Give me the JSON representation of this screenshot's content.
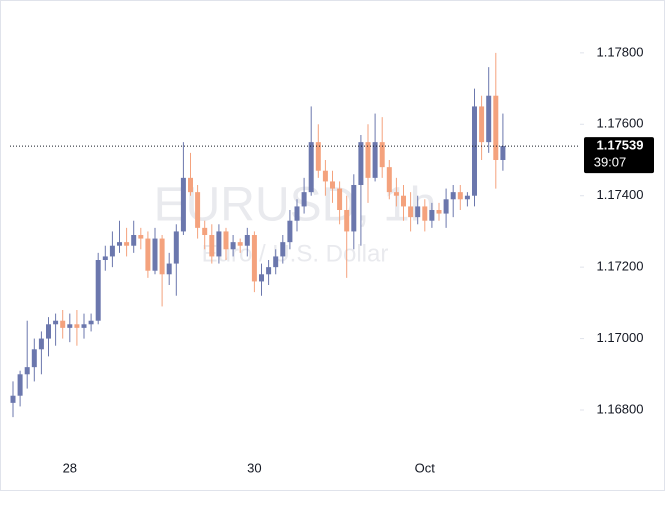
{
  "chart_data": {
    "type": "candlestick",
    "watermark": {
      "symbol": "EURUSD, 1h",
      "description": "Euro / U.S. Dollar"
    },
    "up_color": "#6b77ad",
    "down_color": "#f4a27d",
    "categories": [
      null,
      null,
      null,
      null,
      null,
      null,
      null,
      null,
      "28",
      null,
      null,
      null,
      null,
      null,
      null,
      null,
      null,
      null,
      null,
      null,
      null,
      null,
      null,
      null,
      null,
      null,
      null,
      null,
      null,
      null,
      null,
      null,
      null,
      null,
      "30",
      null,
      null,
      null,
      null,
      null,
      null,
      null,
      null,
      null,
      null,
      null,
      null,
      null,
      null,
      null,
      null,
      null,
      null,
      null,
      null,
      null,
      null,
      null,
      "Oct",
      null,
      null,
      null,
      null,
      null,
      null,
      null,
      null,
      null,
      null,
      null
    ],
    "ohlc": [
      [
        1.1682,
        1.1688,
        1.1678,
        1.1684
      ],
      [
        1.1684,
        1.1691,
        1.1681,
        1.169
      ],
      [
        1.169,
        1.1705,
        1.1686,
        1.1692
      ],
      [
        1.1692,
        1.17,
        1.1688,
        1.1697
      ],
      [
        1.1697,
        1.1702,
        1.169,
        1.17
      ],
      [
        1.17,
        1.1706,
        1.1695,
        1.1704
      ],
      [
        1.1704,
        1.1707,
        1.1698,
        1.1705
      ],
      [
        1.1705,
        1.1708,
        1.17,
        1.1703
      ],
      [
        1.1703,
        1.1707,
        1.1699,
        1.1704
      ],
      [
        1.1704,
        1.1708,
        1.1698,
        1.1703
      ],
      [
        1.1703,
        1.1707,
        1.17,
        1.1704
      ],
      [
        1.1704,
        1.1707,
        1.1702,
        1.1705
      ],
      [
        1.1705,
        1.1724,
        1.1704,
        1.1722
      ],
      [
        1.1722,
        1.1726,
        1.1719,
        1.1723
      ],
      [
        1.1723,
        1.173,
        1.172,
        1.1726
      ],
      [
        1.1726,
        1.1733,
        1.1724,
        1.1727
      ],
      [
        1.1727,
        1.1731,
        1.1723,
        1.1726
      ],
      [
        1.1726,
        1.1733,
        1.1724,
        1.1729
      ],
      [
        1.1729,
        1.1731,
        1.1725,
        1.1728
      ],
      [
        1.1728,
        1.173,
        1.1717,
        1.1719
      ],
      [
        1.1719,
        1.1731,
        1.1718,
        1.1728
      ],
      [
        1.1728,
        1.1729,
        1.1709,
        1.1718
      ],
      [
        1.1718,
        1.1724,
        1.1715,
        1.1721
      ],
      [
        1.1721,
        1.1732,
        1.1712,
        1.173
      ],
      [
        1.173,
        1.1755,
        1.1729,
        1.1745
      ],
      [
        1.1745,
        1.1752,
        1.174,
        1.1741
      ],
      [
        1.1741,
        1.1743,
        1.1728,
        1.1731
      ],
      [
        1.1731,
        1.1733,
        1.1725,
        1.1729
      ],
      [
        1.1729,
        1.1732,
        1.1721,
        1.1723
      ],
      [
        1.1723,
        1.1732,
        1.1721,
        1.173
      ],
      [
        1.173,
        1.1731,
        1.1722,
        1.1725
      ],
      [
        1.1725,
        1.1729,
        1.1723,
        1.1727
      ],
      [
        1.1727,
        1.1728,
        1.1724,
        1.1726
      ],
      [
        1.1726,
        1.1731,
        1.1723,
        1.1729
      ],
      [
        1.1729,
        1.173,
        1.1713,
        1.1716
      ],
      [
        1.1716,
        1.1721,
        1.1712,
        1.1718
      ],
      [
        1.1718,
        1.1722,
        1.1715,
        1.172
      ],
      [
        1.172,
        1.1725,
        1.1718,
        1.1723
      ],
      [
        1.1723,
        1.1729,
        1.1721,
        1.1727
      ],
      [
        1.1727,
        1.1736,
        1.1725,
        1.1733
      ],
      [
        1.1733,
        1.1739,
        1.173,
        1.1737
      ],
      [
        1.1737,
        1.1745,
        1.1735,
        1.1741
      ],
      [
        1.1741,
        1.1765,
        1.174,
        1.1755
      ],
      [
        1.1755,
        1.176,
        1.1745,
        1.1747
      ],
      [
        1.1747,
        1.175,
        1.174,
        1.1744
      ],
      [
        1.1744,
        1.1747,
        1.1738,
        1.1742
      ],
      [
        1.1742,
        1.1744,
        1.1732,
        1.1736
      ],
      [
        1.1736,
        1.174,
        1.1717,
        1.173
      ],
      [
        1.173,
        1.1746,
        1.1725,
        1.1743
      ],
      [
        1.1743,
        1.1757,
        1.1726,
        1.1755
      ],
      [
        1.1755,
        1.176,
        1.1738,
        1.1745
      ],
      [
        1.1745,
        1.1763,
        1.1744,
        1.1755
      ],
      [
        1.1755,
        1.1762,
        1.1745,
        1.1748
      ],
      [
        1.1748,
        1.175,
        1.1739,
        1.1741
      ],
      [
        1.1741,
        1.1745,
        1.1737,
        1.174
      ],
      [
        1.174,
        1.1743,
        1.1733,
        1.1737
      ],
      [
        1.1737,
        1.1741,
        1.173,
        1.1734
      ],
      [
        1.1734,
        1.174,
        1.1732,
        1.1737
      ],
      [
        1.1737,
        1.1739,
        1.173,
        1.1733
      ],
      [
        1.1733,
        1.1738,
        1.1731,
        1.1736
      ],
      [
        1.1736,
        1.1738,
        1.1733,
        1.1735
      ],
      [
        1.1735,
        1.1742,
        1.1731,
        1.1739
      ],
      [
        1.1739,
        1.1743,
        1.1734,
        1.1741
      ],
      [
        1.1741,
        1.1743,
        1.1736,
        1.1739
      ],
      [
        1.1739,
        1.1741,
        1.1737,
        1.174
      ],
      [
        1.174,
        1.177,
        1.1737,
        1.1765
      ],
      [
        1.1765,
        1.1768,
        1.175,
        1.1755
      ],
      [
        1.1755,
        1.1776,
        1.1752,
        1.1768
      ],
      [
        1.1768,
        1.178,
        1.1742,
        1.175
      ],
      [
        1.175,
        1.1763,
        1.1747,
        1.17539
      ]
    ],
    "ylim": [
      1.1666,
      1.1792
    ],
    "yticks": [
      {
        "value": 1.168,
        "label": "1.16800"
      },
      {
        "value": 1.17,
        "label": "1.17000"
      },
      {
        "value": 1.172,
        "label": "1.17200"
      },
      {
        "value": 1.174,
        "label": "1.17400"
      },
      {
        "value": 1.176,
        "label": "1.17600"
      },
      {
        "value": 1.178,
        "label": "1.17800"
      }
    ],
    "last_price": 1.17539,
    "countdown": "39:07"
  }
}
